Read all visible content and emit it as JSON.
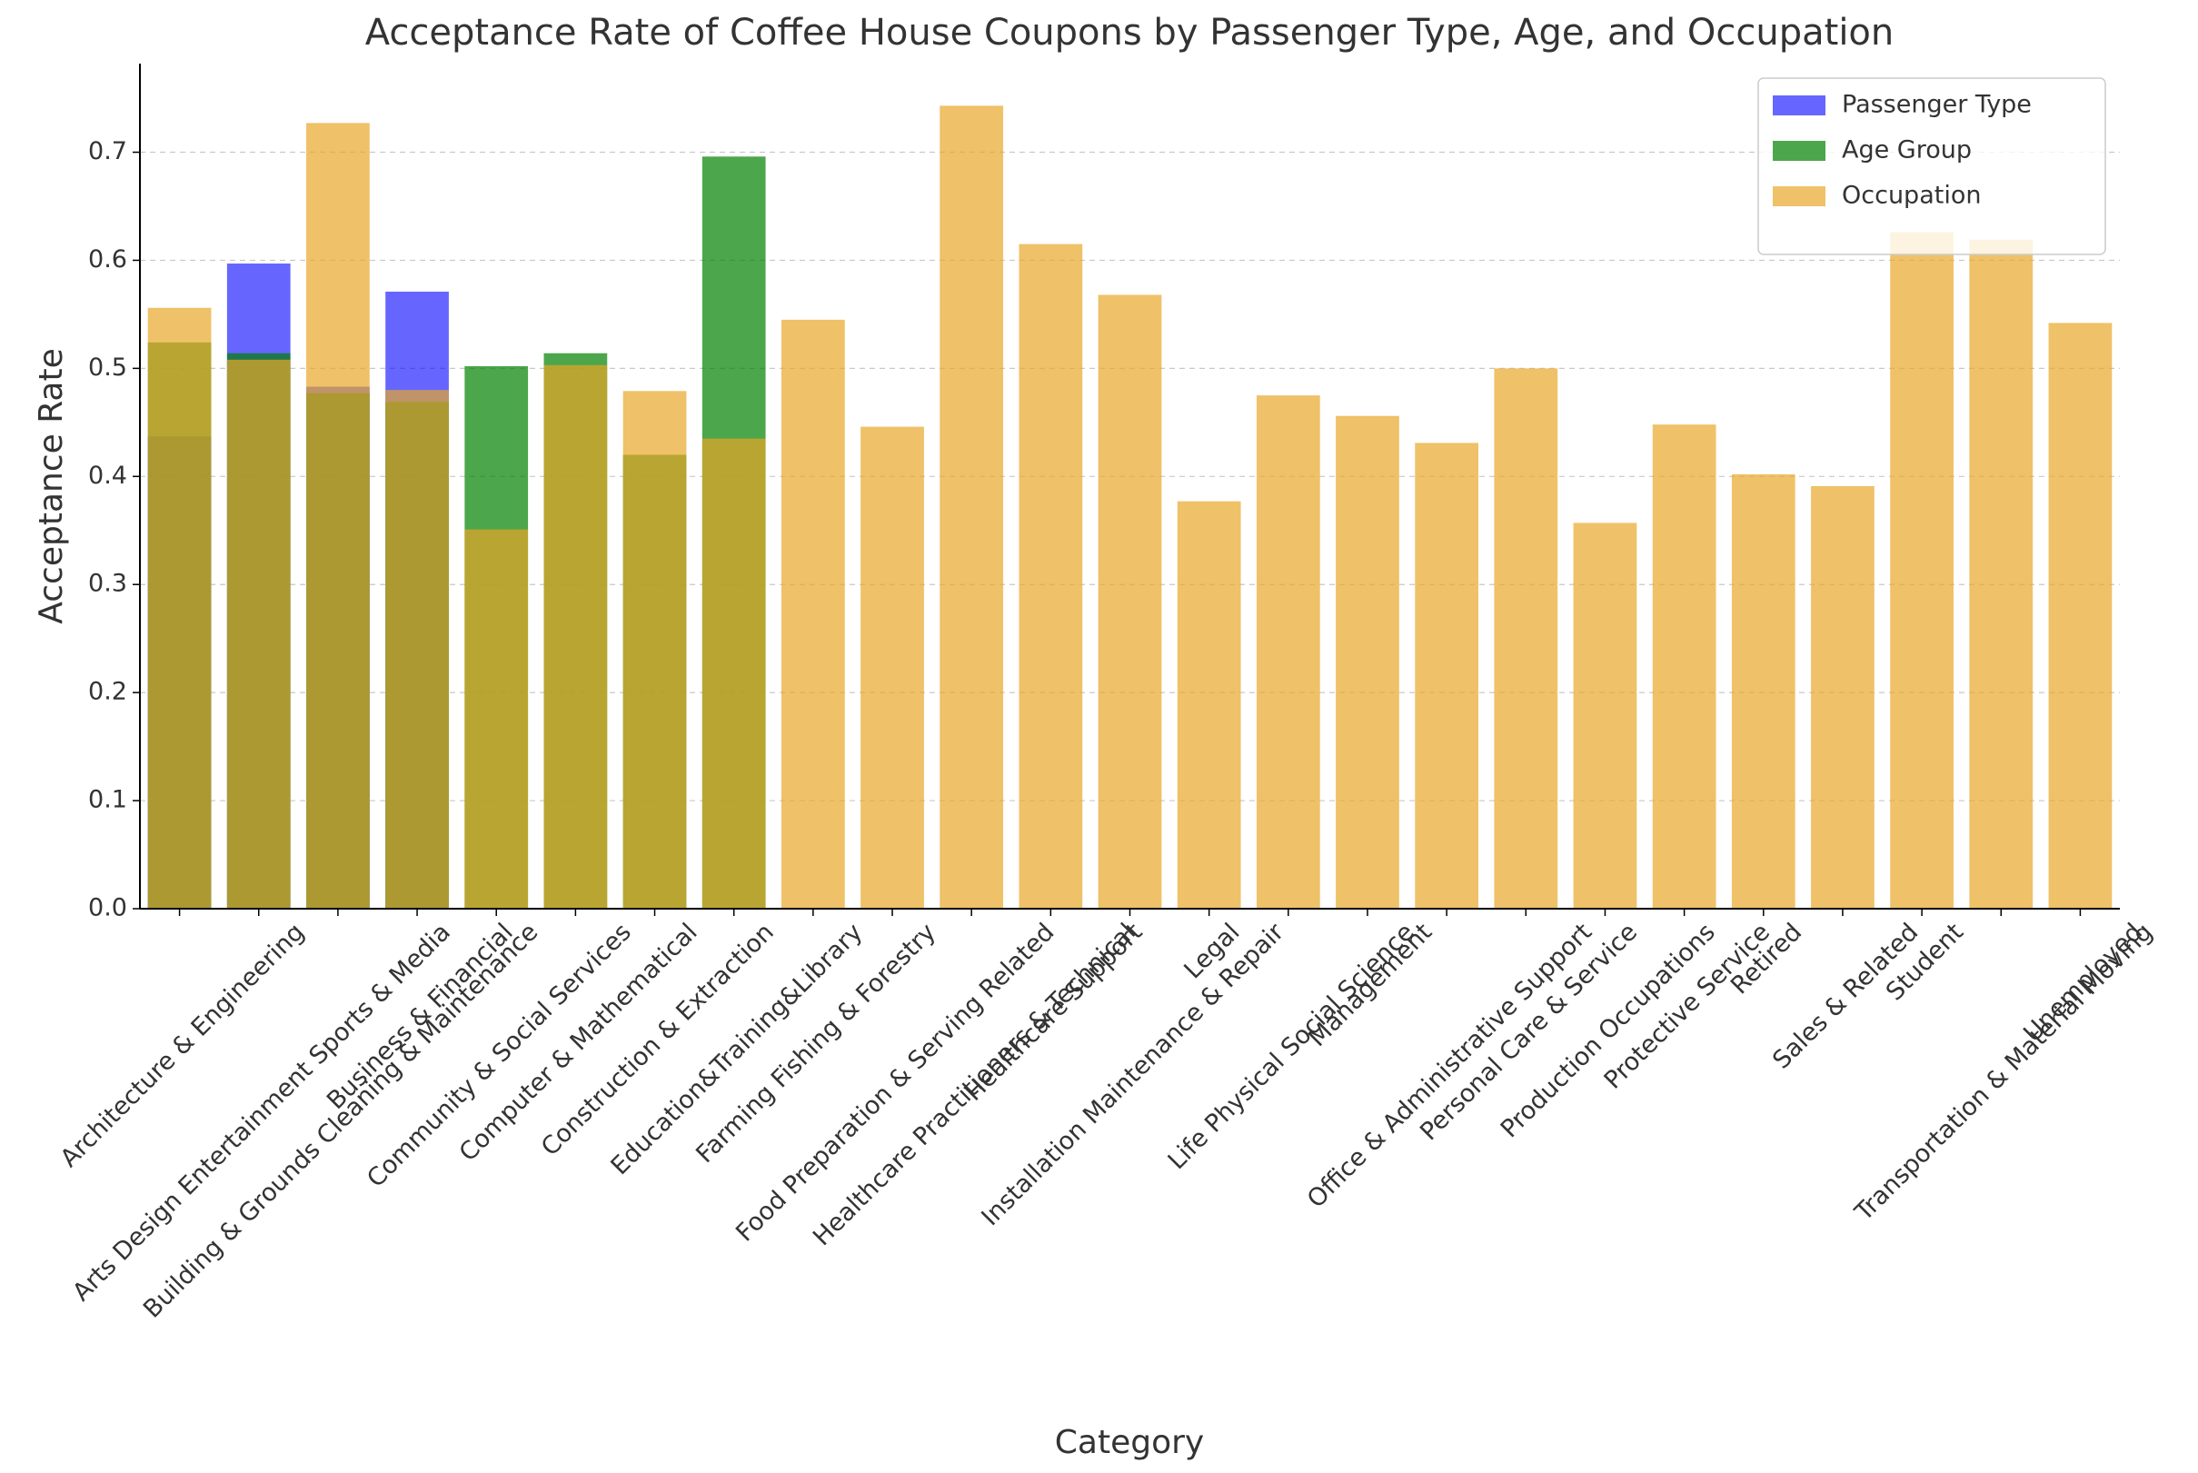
{
  "chart_data": {
    "type": "bar",
    "title": "Acceptance Rate of Coffee House Coupons by Passenger Type, Age, and Occupation",
    "xlabel": "Category",
    "ylabel": "Acceptance Rate",
    "categories": [
      "Architecture & Engineering",
      "Arts Design Entertainment Sports & Media",
      "Building & Grounds Cleaning & Maintenance",
      "Business & Financial",
      "Community & Social Services",
      "Computer & Mathematical",
      "Construction & Extraction",
      "Education&Training&Library",
      "Farming Fishing & Forestry",
      "Food Preparation & Serving Related",
      "Healthcare Practitioners & Technical",
      "Healthcare Support",
      "Installation Maintenance & Repair",
      "Legal",
      "Life Physical Social Science",
      "Management",
      "Office & Administrative Support",
      "Personal Care & Service",
      "Production Occupations",
      "Protective Service",
      "Retired",
      "Sales & Related",
      "Student",
      "Transportation & Material Moving",
      "Unemployed"
    ],
    "series": [
      {
        "name": "Passenger Type",
        "color": "#0000ff",
        "values": [
          0.437,
          0.597,
          0.483,
          0.571,
          null,
          null,
          null,
          null,
          null,
          null,
          null,
          null,
          null,
          null,
          null,
          null,
          null,
          null,
          null,
          null,
          null,
          null,
          null,
          null,
          null
        ]
      },
      {
        "name": "Age Group",
        "color": "#008000",
        "values": [
          0.524,
          0.514,
          0.477,
          0.469,
          0.502,
          0.514,
          0.42,
          0.696,
          null,
          null,
          null,
          null,
          null,
          null,
          null,
          null,
          null,
          null,
          null,
          null,
          null,
          null,
          null,
          null,
          null
        ]
      },
      {
        "name": "Occupation",
        "color": "#e8a628",
        "values": [
          0.556,
          0.508,
          0.727,
          0.48,
          0.351,
          0.503,
          0.479,
          0.435,
          0.545,
          0.446,
          0.743,
          0.615,
          0.568,
          0.377,
          0.475,
          0.456,
          0.431,
          0.5,
          0.357,
          0.448,
          0.402,
          0.391,
          0.626,
          0.619,
          0.542
        ]
      }
    ],
    "ylim": [
      0,
      0.782
    ],
    "yticks": [
      {
        "value": 0,
        "label": "0.0"
      },
      0.1,
      0.2,
      0.3,
      0.4,
      0.5,
      0.6,
      0.7
    ],
    "grid": true,
    "legend": "upper right"
  }
}
